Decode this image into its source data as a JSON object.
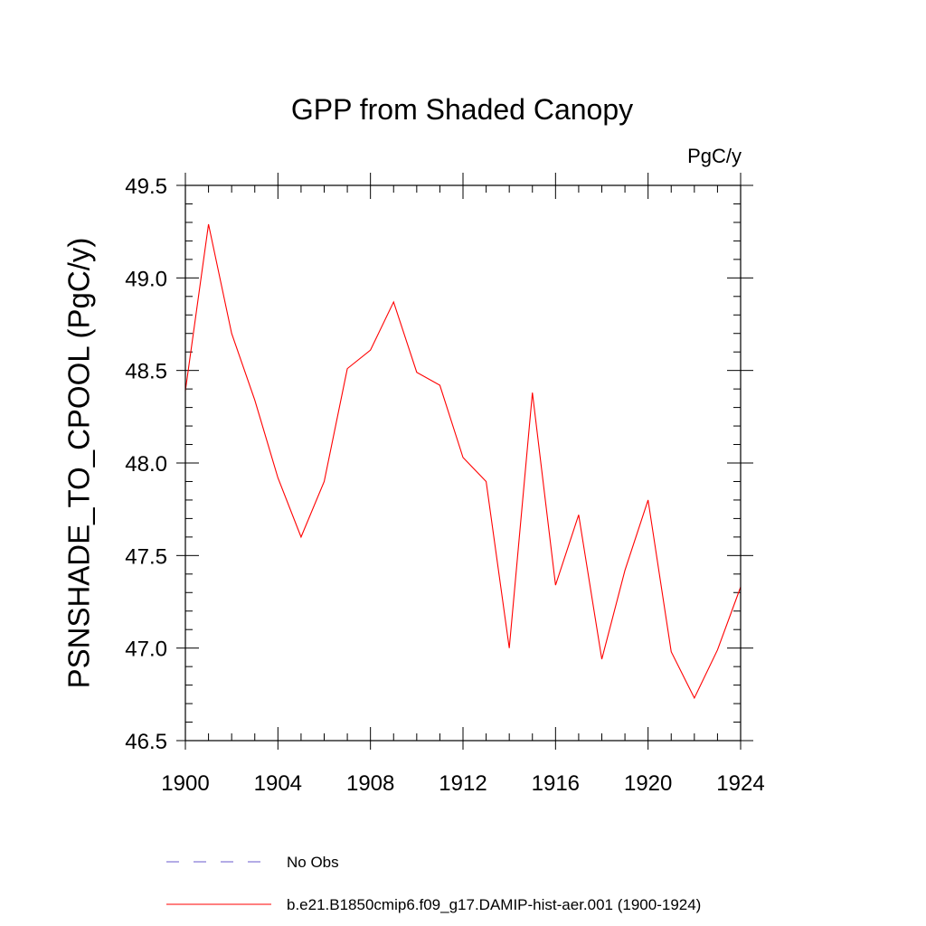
{
  "chart_data": {
    "type": "line",
    "title": "GPP from Shaded Canopy",
    "units_label": "PgC/y",
    "xlabel": "",
    "ylabel": "PSNSHADE_TO_CPOOL  (PgC/y)",
    "xlim": [
      1900,
      1924
    ],
    "ylim": [
      46.5,
      49.5
    ],
    "x_ticks": [
      1900,
      1904,
      1908,
      1912,
      1916,
      1920,
      1924
    ],
    "x_tick_labels": [
      "1900",
      "1904",
      "1908",
      "1912",
      "1916",
      "1920",
      "1924"
    ],
    "y_ticks": [
      46.5,
      47.0,
      47.5,
      48.0,
      48.5,
      49.0,
      49.5
    ],
    "y_tick_labels": [
      "46.5",
      "47.0",
      "47.5",
      "48.0",
      "48.5",
      "49.0",
      "49.5"
    ],
    "x": [
      1900,
      1901,
      1902,
      1903,
      1904,
      1905,
      1906,
      1907,
      1908,
      1909,
      1910,
      1911,
      1912,
      1913,
      1914,
      1915,
      1916,
      1917,
      1918,
      1919,
      1920,
      1921,
      1922,
      1923,
      1924
    ],
    "series": [
      {
        "name": "b.e21.B1850cmip6.f09_g17.DAMIP-hist-aer.001 (1900-1924)",
        "color": "#ff0000",
        "values": [
          48.39,
          49.29,
          48.7,
          48.34,
          47.92,
          47.6,
          47.9,
          48.51,
          48.61,
          48.87,
          48.49,
          48.42,
          48.03,
          47.9,
          47.0,
          48.38,
          47.34,
          47.72,
          46.94,
          47.42,
          47.8,
          46.98,
          46.73,
          46.99,
          47.33
        ]
      }
    ],
    "legend": [
      {
        "label": "No Obs",
        "color": "#6a5acd",
        "style": "dashed"
      },
      {
        "label": "b.e21.B1850cmip6.f09_g17.DAMIP-hist-aer.001 (1900-1924)",
        "color": "#ff0000",
        "style": "solid"
      }
    ],
    "grid": false,
    "legend_position": "bottom"
  }
}
